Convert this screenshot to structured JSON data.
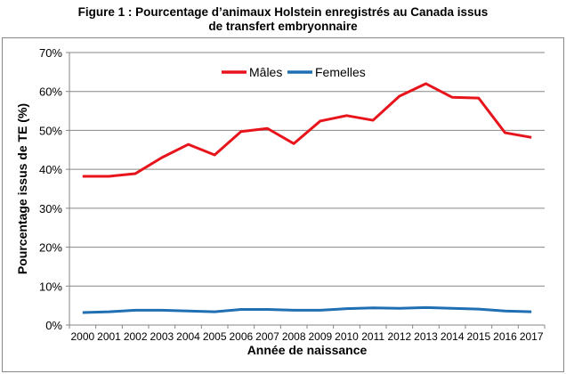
{
  "chart_data": {
    "type": "line",
    "title_line1": "Figure 1 : Pourcentage d’animaux Holstein enregistrés au Canada issus",
    "title_line2": "de transfert embryonnaire",
    "xlabel": "Année de naissance",
    "ylabel": "Pourcentage issus de TE (%)",
    "ylim": [
      0,
      70
    ],
    "yticks": [
      "0%",
      "10%",
      "20%",
      "30%",
      "40%",
      "50%",
      "60%",
      "70%"
    ],
    "x": [
      "2000",
      "2001",
      "2002",
      "2003",
      "2004",
      "2005",
      "2006",
      "2007",
      "2008",
      "2009",
      "2010",
      "2011",
      "2012",
      "2013",
      "2014",
      "2015",
      "2016",
      "2017"
    ],
    "grid": true,
    "legend": "top-center",
    "series": [
      {
        "name": "Mâles",
        "color": "#e8141c",
        "values": [
          38.2,
          38.2,
          38.9,
          43.0,
          46.4,
          43.7,
          49.7,
          50.5,
          46.6,
          52.4,
          53.8,
          52.6,
          58.8,
          62.0,
          58.5,
          58.3,
          49.4,
          48.2
        ]
      },
      {
        "name": "Femelles",
        "color": "#1f6fb2",
        "values": [
          3.2,
          3.4,
          3.8,
          3.8,
          3.6,
          3.4,
          4.0,
          4.0,
          3.8,
          3.8,
          4.2,
          4.4,
          4.3,
          4.5,
          4.3,
          4.1,
          3.6,
          3.4
        ]
      }
    ]
  }
}
